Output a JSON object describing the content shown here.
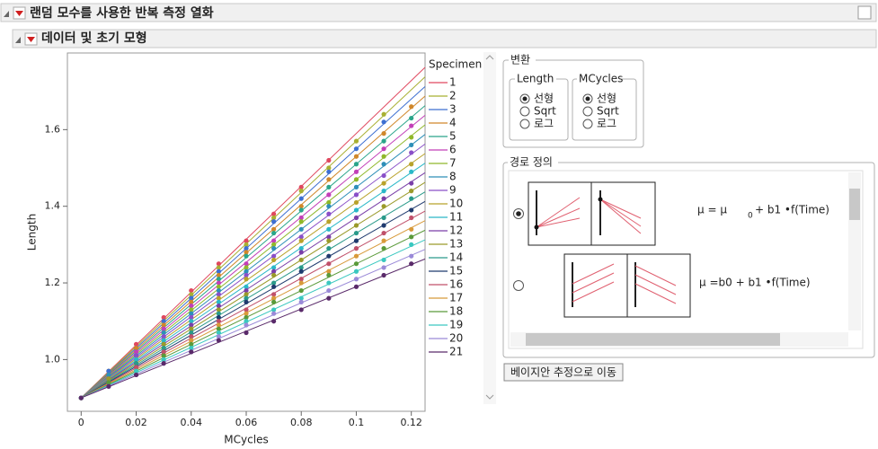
{
  "ui": {
    "outline_title": "랜덤 모수를 사용한 반복 측정 열화",
    "sub_title": "데이터 및 초기 모형",
    "transform": {
      "title": "변환",
      "length": {
        "title": "Length",
        "options": [
          "선형",
          "Sqrt",
          "로그"
        ]
      },
      "mcycles": {
        "title": "MCycles",
        "options": [
          "선형",
          "Sqrt",
          "로그"
        ]
      }
    },
    "path": {
      "title": "경로 정의",
      "formula1": [
        "μ = μ",
        "0",
        "+ b1 •f(Time)"
      ],
      "formula2": "μ =b0 + b1 •f(Time)"
    },
    "button": "베이지안 추정으로 이동"
  },
  "chart_data": {
    "type": "scatter",
    "x_label": "MCycles",
    "y_label": "Length",
    "legend_title": "Specimen",
    "xlim": [
      -0.005,
      0.125
    ],
    "ylim": [
      0.865,
      1.8
    ],
    "xticks": [
      0,
      0.02,
      0.04,
      0.06,
      0.08,
      0.1,
      0.12
    ],
    "yticks": [
      {
        "value": 1,
        "label": "1.0"
      },
      1.2,
      1.4,
      1.6
    ],
    "x": [
      0,
      0.01,
      0.02,
      0.03,
      0.04,
      0.05,
      0.06,
      0.07,
      0.08,
      0.09,
      0.1,
      0.11,
      0.12
    ],
    "fit_x": [
      0,
      0.125
    ],
    "series": [
      {
        "name": "1",
        "color": "#e0485f",
        "values": [
          0.9,
          0.97,
          1.04,
          1.11,
          1.18,
          1.25,
          1.31,
          1.38,
          1.45,
          1.52,
          null,
          null,
          null
        ],
        "fit": [
          0.9,
          1.7625
        ]
      },
      {
        "name": "2",
        "color": "#a8b032",
        "values": [
          0.9,
          0.97,
          1.03,
          1.1,
          1.17,
          1.24,
          1.3,
          1.37,
          1.44,
          1.5,
          1.57,
          1.64,
          null
        ],
        "fit": [
          0.9,
          1.7375
        ]
      },
      {
        "name": "3",
        "color": "#3d6fd1",
        "values": [
          0.9,
          0.97,
          1.03,
          1.1,
          1.16,
          1.23,
          1.29,
          1.36,
          1.42,
          1.49,
          1.55,
          1.62,
          null
        ],
        "fit": [
          0.9,
          1.7125
        ]
      },
      {
        "name": "4",
        "color": "#d0872a",
        "values": [
          0.9,
          0.96,
          1.03,
          1.09,
          1.15,
          1.22,
          1.28,
          1.34,
          1.4,
          1.47,
          1.53,
          1.59,
          1.66
        ],
        "fit": [
          0.9,
          1.6875
        ]
      },
      {
        "name": "5",
        "color": "#2aa58a",
        "values": [
          0.9,
          0.96,
          1.02,
          1.08,
          1.14,
          1.21,
          1.27,
          1.33,
          1.39,
          1.45,
          1.51,
          1.57,
          1.63
        ],
        "fit": [
          0.9,
          1.6625
        ]
      },
      {
        "name": "6",
        "color": "#c23fb8",
        "values": [
          0.9,
          0.96,
          1.02,
          1.08,
          1.14,
          1.2,
          1.25,
          1.31,
          1.37,
          1.43,
          1.49,
          1.55,
          1.61
        ],
        "fit": [
          0.9,
          1.6375
        ]
      },
      {
        "name": "7",
        "color": "#8fb82a",
        "values": [
          0.9,
          0.96,
          1.01,
          1.07,
          1.13,
          1.19,
          1.24,
          1.3,
          1.36,
          1.41,
          1.47,
          1.53,
          1.58
        ],
        "fit": [
          0.9,
          1.6125
        ]
      },
      {
        "name": "8",
        "color": "#2e8fb8",
        "values": [
          0.9,
          0.96,
          1.01,
          1.07,
          1.12,
          1.18,
          1.23,
          1.29,
          1.34,
          1.4,
          1.45,
          1.51,
          1.56
        ],
        "fit": [
          0.9,
          1.5875
        ]
      },
      {
        "name": "9",
        "color": "#8a4fc8",
        "values": [
          0.9,
          0.95,
          1.01,
          1.06,
          1.11,
          1.17,
          1.22,
          1.27,
          1.32,
          1.38,
          1.43,
          1.48,
          1.54
        ],
        "fit": [
          0.9,
          1.5625
        ]
      },
      {
        "name": "10",
        "color": "#b8a22a",
        "values": [
          0.9,
          0.95,
          1.0,
          1.05,
          1.1,
          1.16,
          1.21,
          1.26,
          1.31,
          1.36,
          1.41,
          1.46,
          1.51
        ],
        "fit": [
          0.9,
          1.5375
        ]
      },
      {
        "name": "11",
        "color": "#2ab8c8",
        "values": [
          0.9,
          0.95,
          1.0,
          1.05,
          1.1,
          1.15,
          1.19,
          1.24,
          1.29,
          1.34,
          1.39,
          1.44,
          1.49
        ],
        "fit": [
          0.9,
          1.5125
        ]
      },
      {
        "name": "12",
        "color": "#7a3fa8",
        "values": [
          0.9,
          0.95,
          0.99,
          1.04,
          1.09,
          1.14,
          1.18,
          1.23,
          1.28,
          1.32,
          1.37,
          1.42,
          1.46
        ],
        "fit": [
          0.9,
          1.4875
        ]
      },
      {
        "name": "13",
        "color": "#9a9a2a",
        "values": [
          0.9,
          0.95,
          0.99,
          1.04,
          1.08,
          1.13,
          1.17,
          1.22,
          1.26,
          1.31,
          1.35,
          1.4,
          1.44
        ],
        "fit": [
          0.9,
          1.4625
        ]
      },
      {
        "name": "14",
        "color": "#2a9a8a",
        "values": [
          0.9,
          0.94,
          0.99,
          1.03,
          1.07,
          1.12,
          1.16,
          1.2,
          1.24,
          1.29,
          1.33,
          1.37,
          1.42
        ],
        "fit": [
          0.9,
          1.4375
        ]
      },
      {
        "name": "15",
        "color": "#1f3a6e",
        "values": [
          0.9,
          0.94,
          0.98,
          1.02,
          1.06,
          1.11,
          1.15,
          1.19,
          1.23,
          1.27,
          1.31,
          1.35,
          1.39
        ],
        "fit": [
          0.9,
          1.4125
        ]
      },
      {
        "name": "16",
        "color": "#c0506a",
        "values": [
          0.9,
          0.94,
          0.98,
          1.02,
          1.06,
          1.1,
          1.13,
          1.17,
          1.21,
          1.25,
          1.29,
          1.33,
          1.37
        ],
        "fit": [
          0.9,
          1.3875
        ]
      },
      {
        "name": "17",
        "color": "#d89a3a",
        "values": [
          0.9,
          0.94,
          0.97,
          1.01,
          1.05,
          1.09,
          1.12,
          1.16,
          1.2,
          1.23,
          1.27,
          1.31,
          1.34
        ],
        "fit": [
          0.9,
          1.3625
        ]
      },
      {
        "name": "18",
        "color": "#5a9a3a",
        "values": [
          0.9,
          0.94,
          0.97,
          1.01,
          1.04,
          1.08,
          1.11,
          1.15,
          1.18,
          1.22,
          1.25,
          1.29,
          1.32
        ],
        "fit": [
          0.9,
          1.3375
        ]
      },
      {
        "name": "19",
        "color": "#3ac8c0",
        "values": [
          0.9,
          0.93,
          0.97,
          1.0,
          1.03,
          1.07,
          1.1,
          1.13,
          1.16,
          1.2,
          1.23,
          1.26,
          1.3
        ],
        "fit": [
          0.9,
          1.3125
        ]
      },
      {
        "name": "20",
        "color": "#9a8ad8",
        "values": [
          0.9,
          0.93,
          0.96,
          0.99,
          1.02,
          1.06,
          1.09,
          1.12,
          1.15,
          1.18,
          1.21,
          1.24,
          1.27
        ],
        "fit": [
          0.9,
          1.2875
        ]
      },
      {
        "name": "21",
        "color": "#5a2a6a",
        "values": [
          0.9,
          0.93,
          0.96,
          0.99,
          1.02,
          1.05,
          1.07,
          1.1,
          1.13,
          1.16,
          1.19,
          1.22,
          1.25
        ],
        "fit": [
          0.9,
          1.2625
        ]
      }
    ]
  }
}
